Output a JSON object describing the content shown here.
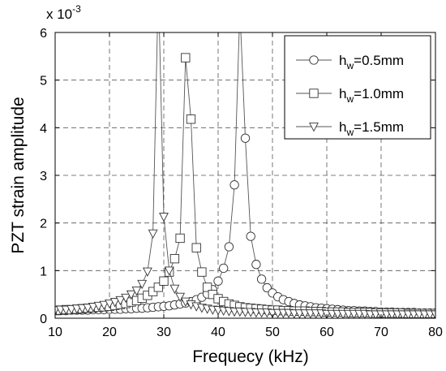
{
  "chart_data": {
    "type": "line",
    "title": "",
    "xlabel": "Frequecy (kHz)",
    "ylabel": "PZT strain amplitude",
    "scale_base": "x 10",
    "scale_exp": "-3",
    "xlim": [
      10,
      80
    ],
    "ylim": [
      0,
      6
    ],
    "xticks": [
      "10",
      "20",
      "30",
      "40",
      "50",
      "60",
      "70",
      "80"
    ],
    "yticks": [
      "0",
      "1",
      "2",
      "3",
      "4",
      "5",
      "6"
    ],
    "grid": true,
    "legend_position": "top-right",
    "series": [
      {
        "name_main": "h",
        "name_sub": "w",
        "name_rest": "=0.5mm",
        "marker": "circle",
        "x": [
          10,
          11,
          12,
          13,
          14,
          15,
          16,
          17,
          18,
          19,
          20,
          21,
          22,
          23,
          24,
          25,
          26,
          27,
          28,
          29,
          30,
          31,
          32,
          33,
          34,
          35,
          36,
          37,
          38,
          39,
          40,
          41,
          42,
          43,
          44,
          45,
          46,
          47,
          48,
          49,
          50,
          51,
          52,
          53,
          54,
          55,
          56,
          57,
          58,
          59,
          60,
          61,
          62,
          63,
          64,
          65,
          66,
          67,
          68,
          69,
          70,
          71,
          72,
          73,
          74,
          75,
          76,
          77,
          78,
          79,
          80
        ],
        "y": [
          0.16,
          0.16,
          0.16,
          0.17,
          0.17,
          0.17,
          0.17,
          0.18,
          0.18,
          0.18,
          0.19,
          0.19,
          0.19,
          0.2,
          0.2,
          0.21,
          0.21,
          0.22,
          0.23,
          0.24,
          0.25,
          0.26,
          0.28,
          0.3,
          0.32,
          0.35,
          0.39,
          0.44,
          0.51,
          0.6,
          0.78,
          1.05,
          1.5,
          2.8,
          6.5,
          3.78,
          1.72,
          1.13,
          0.82,
          0.64,
          0.53,
          0.45,
          0.39,
          0.35,
          0.31,
          0.28,
          0.26,
          0.24,
          0.22,
          0.21,
          0.2,
          0.19,
          0.18,
          0.17,
          0.16,
          0.16,
          0.15,
          0.15,
          0.14,
          0.14,
          0.13,
          0.13,
          0.13,
          0.12,
          0.12,
          0.12,
          0.12,
          0.11,
          0.11,
          0.11,
          0.11
        ]
      },
      {
        "name_main": "h",
        "name_sub": "w",
        "name_rest": "=1.0mm",
        "marker": "square",
        "x": [
          10,
          11,
          12,
          13,
          14,
          15,
          16,
          17,
          18,
          19,
          20,
          21,
          22,
          23,
          24,
          25,
          26,
          27,
          28,
          29,
          30,
          31,
          32,
          33,
          34,
          35,
          36,
          37,
          38,
          39,
          40,
          41,
          42,
          43,
          44,
          45,
          46,
          47,
          48,
          49,
          50,
          51,
          52,
          53,
          54,
          55,
          56,
          57,
          58,
          59,
          60,
          61,
          62,
          63,
          64,
          65,
          66,
          67,
          68,
          69,
          70,
          71,
          72,
          73,
          74,
          75,
          76,
          77,
          78,
          79,
          80
        ],
        "y": [
          0.16,
          0.17,
          0.18,
          0.18,
          0.19,
          0.2,
          0.21,
          0.22,
          0.23,
          0.24,
          0.25,
          0.27,
          0.29,
          0.31,
          0.34,
          0.37,
          0.42,
          0.48,
          0.56,
          0.65,
          0.78,
          0.97,
          1.25,
          1.68,
          5.47,
          4.18,
          1.48,
          0.97,
          0.65,
          0.5,
          0.41,
          0.35,
          0.3,
          0.27,
          0.24,
          0.22,
          0.21,
          0.2,
          0.19,
          0.18,
          0.17,
          0.17,
          0.16,
          0.16,
          0.15,
          0.15,
          0.15,
          0.14,
          0.14,
          0.14,
          0.13,
          0.13,
          0.13,
          0.13,
          0.12,
          0.12,
          0.12,
          0.12,
          0.12,
          0.11,
          0.11,
          0.11,
          0.11,
          0.11,
          0.11,
          0.1,
          0.1,
          0.1,
          0.1,
          0.1,
          0.1
        ]
      },
      {
        "name_main": "h",
        "name_sub": "w",
        "name_rest": "=1.5mm",
        "marker": "triangle-down",
        "x": [
          10,
          11,
          12,
          13,
          14,
          15,
          16,
          17,
          18,
          19,
          20,
          21,
          22,
          23,
          24,
          25,
          26,
          27,
          28,
          29,
          30,
          31,
          32,
          33,
          34,
          35,
          36,
          37,
          38,
          39,
          40,
          41,
          42,
          43,
          44,
          45,
          46,
          47,
          48,
          49,
          50,
          51,
          52,
          53,
          54,
          55,
          56,
          57,
          58,
          59,
          60,
          61,
          62,
          63,
          64,
          65,
          66,
          67,
          68,
          69,
          70,
          71,
          72,
          73,
          74,
          75,
          76,
          77,
          78,
          79,
          80
        ],
        "y": [
          0.17,
          0.18,
          0.18,
          0.19,
          0.2,
          0.21,
          0.22,
          0.24,
          0.26,
          0.28,
          0.31,
          0.34,
          0.38,
          0.43,
          0.5,
          0.58,
          0.72,
          0.98,
          1.78,
          7.0,
          2.13,
          1.0,
          0.62,
          0.45,
          0.35,
          0.29,
          0.25,
          0.22,
          0.2,
          0.18,
          0.17,
          0.16,
          0.15,
          0.14,
          0.14,
          0.13,
          0.13,
          0.12,
          0.12,
          0.12,
          0.11,
          0.11,
          0.11,
          0.11,
          0.1,
          0.1,
          0.1,
          0.1,
          0.1,
          0.1,
          0.09,
          0.09,
          0.09,
          0.09,
          0.09,
          0.09,
          0.09,
          0.09,
          0.08,
          0.08,
          0.08,
          0.08,
          0.08,
          0.08,
          0.08,
          0.08,
          0.08,
          0.08,
          0.08,
          0.08,
          0.08
        ]
      }
    ]
  }
}
